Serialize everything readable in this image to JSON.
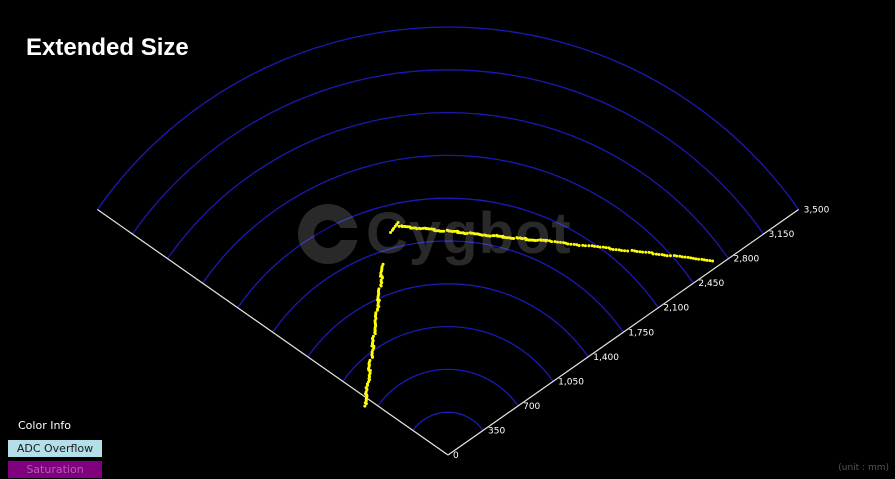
{
  "header": {
    "title": "Extended Size"
  },
  "radar": {
    "max_range": 3500,
    "ring_labels": [
      "0",
      "350",
      "700",
      "1,050",
      "1,400",
      "1,750",
      "2,100",
      "2,450",
      "2,800",
      "3,150",
      "3,500"
    ],
    "ring_color": "#1a1ab4",
    "axis_color": "#e6e6e6",
    "point_color": "#ffff00"
  },
  "legend": {
    "title": "Color Info",
    "items": [
      {
        "label": "ADC Overflow",
        "color": "#b3dfe8",
        "text_color": "#1a1a1a"
      },
      {
        "label": "Saturation",
        "color": "#800080",
        "text_color": "#b060b0"
      }
    ]
  },
  "watermark": {
    "text": "Cygbot",
    "icon": "cygbot-logo-icon"
  },
  "footer": {
    "unit": "(unit : mm)"
  }
}
